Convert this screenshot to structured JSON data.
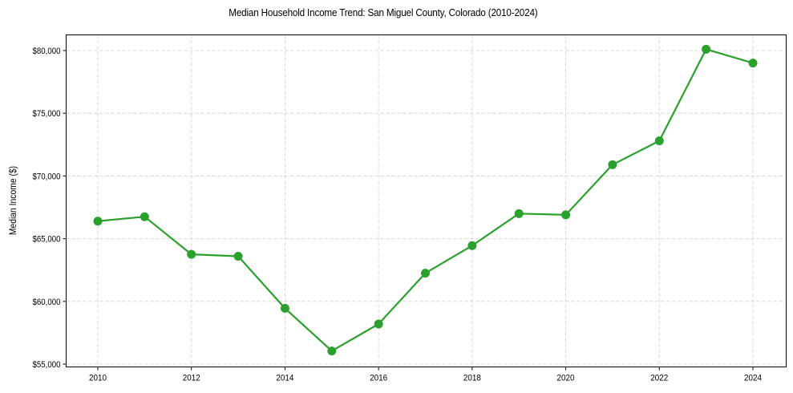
{
  "chart_data": {
    "type": "line",
    "title": "Median Household Income Trend: San Miguel County, Colorado (2010-2024)",
    "xlabel": "",
    "ylabel": "Median Income ($)",
    "x": [
      2010,
      2011,
      2012,
      2013,
      2014,
      2015,
      2016,
      2017,
      2018,
      2019,
      2020,
      2021,
      2022,
      2023,
      2024
    ],
    "series": [
      {
        "name": "Median Household Income",
        "color": "#2ca02c",
        "marker": "circle",
        "values": [
          66400,
          66750,
          63750,
          63600,
          59450,
          56050,
          58200,
          62250,
          64450,
          67000,
          66900,
          70900,
          72800,
          80100,
          79000
        ]
      }
    ],
    "xticks": [
      "2010",
      "2012",
      "2014",
      "2016",
      "2018",
      "2020",
      "2022",
      "2024"
    ],
    "yticks": [
      "$55,000",
      "$60,000",
      "$65,000",
      "$70,000",
      "$75,000",
      "$80,000"
    ],
    "xlim": [
      2009.3,
      2024.7
    ],
    "ylim": [
      54800,
      81300
    ],
    "grid": true,
    "grid_style": "dashed",
    "legend": null
  }
}
